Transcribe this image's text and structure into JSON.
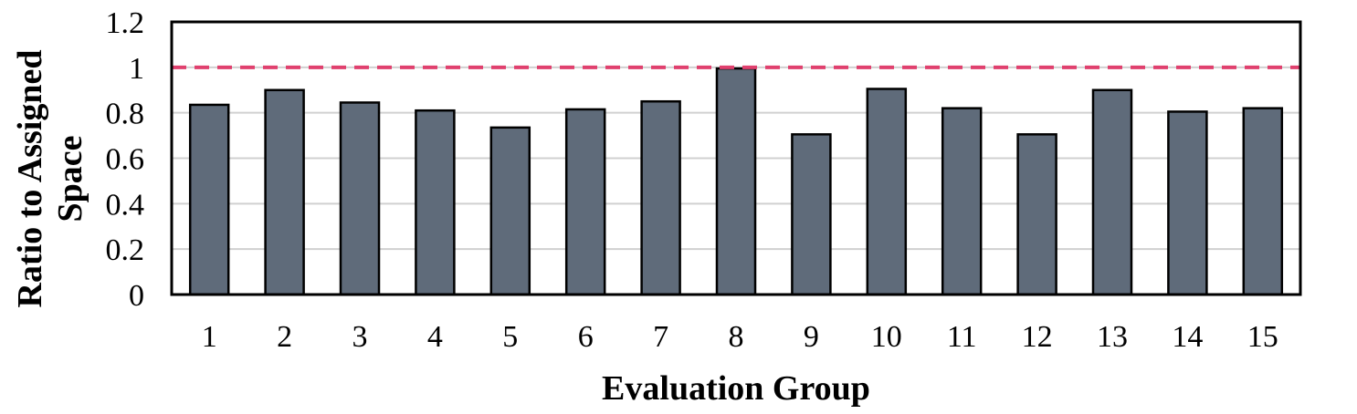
{
  "chart_data": {
    "type": "bar",
    "categories": [
      "1",
      "2",
      "3",
      "4",
      "5",
      "6",
      "7",
      "8",
      "9",
      "10",
      "11",
      "12",
      "13",
      "14",
      "15"
    ],
    "values": [
      0.835,
      0.9,
      0.845,
      0.81,
      0.735,
      0.815,
      0.85,
      0.995,
      0.705,
      0.905,
      0.82,
      0.705,
      0.9,
      0.805,
      0.82
    ],
    "xlabel": "Evaluation Group",
    "ylabel_lines": [
      "Ratio to Assigned",
      "Space"
    ],
    "ylim": [
      0,
      1.2
    ],
    "yticks": [
      "0",
      "0.2",
      "0.4",
      "0.6",
      "0.8",
      "1",
      "1.2"
    ],
    "ytick_values": [
      0,
      0.2,
      0.4,
      0.6,
      0.8,
      1.0,
      1.2
    ],
    "reference_line": 1.0,
    "grid": true,
    "legend": "none",
    "colors": {
      "bar": "#5f6b7a",
      "reference": "#e0406e",
      "grid": "#d0d0d0"
    }
  }
}
